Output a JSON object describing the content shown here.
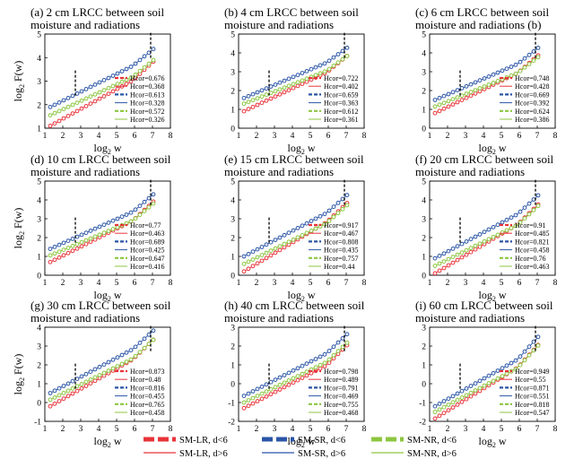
{
  "colors": {
    "SM-LR": "#e8333a",
    "SM-SR": "#2a55a6",
    "SM-NR": "#8cc63f",
    "cutoff": "#000000"
  },
  "bottom_legend": [
    {
      "label": "SM-LR, d<6",
      "series": "SM-LR",
      "style": "dashed-thick"
    },
    {
      "label": "SM-LR, d>6",
      "series": "SM-LR",
      "style": "solid-thin"
    },
    {
      "label": "SM-SR, d<6",
      "series": "SM-SR",
      "style": "dashed-thick"
    },
    {
      "label": "SM-SR, d>6",
      "series": "SM-SR",
      "style": "solid-thin"
    },
    {
      "label": "SM-NR, d<6",
      "series": "SM-NR",
      "style": "dashed-thick"
    },
    {
      "label": "SM-NR, d>6",
      "series": "SM-NR",
      "style": "solid-thin"
    }
  ],
  "chart_data": [
    {
      "type": "scatter",
      "title": [
        "(a) 2 cm LRCC between soil",
        "moisture and radiations"
      ],
      "xlabel": "log2 w",
      "ylabel": "log2 F(w)",
      "xlim": [
        1,
        8
      ],
      "ylim": [
        1,
        5
      ],
      "xticks": [
        1,
        2,
        3,
        4,
        5,
        6,
        7,
        8
      ],
      "yticks": [
        1,
        2,
        3,
        4,
        5
      ],
      "cutoffs": [
        2.7,
        6.9
      ],
      "hcor": [
        "Hcor=0.676",
        "Hcor=0.368",
        "Hcor=0.613",
        "Hcor=0.328",
        "Hcor=0.572",
        "Hcor=0.326"
      ],
      "series": [
        {
          "key": "SM-LR",
          "start": 1.1,
          "h1": 0.676,
          "h2": 0.368
        },
        {
          "key": "SM-SR",
          "start": 1.9,
          "h1": 0.613,
          "h2": 0.328
        },
        {
          "key": "SM-NR",
          "start": 1.55,
          "h1": 0.572,
          "h2": 0.326
        }
      ]
    },
    {
      "type": "scatter",
      "title": [
        "(b) 4 cm LRCC between soil",
        "moisture and radiations"
      ],
      "xlabel": "log2 w",
      "ylabel": "",
      "xlim": [
        1,
        8
      ],
      "ylim": [
        0,
        5
      ],
      "xticks": [
        1,
        2,
        3,
        4,
        5,
        6,
        7,
        8
      ],
      "yticks": [
        0,
        1,
        2,
        3,
        4,
        5
      ],
      "cutoffs": [
        2.7,
        6.9
      ],
      "hcor": [
        "Hcor=0.722",
        "Hcor=0.402",
        "Hcor=0.659",
        "Hcor=0.363",
        "Hcor=0.612",
        "Hcor=0.361"
      ],
      "series": [
        {
          "key": "SM-LR",
          "start": 0.9,
          "h1": 0.722,
          "h2": 0.402
        },
        {
          "key": "SM-SR",
          "start": 1.6,
          "h1": 0.659,
          "h2": 0.363
        },
        {
          "key": "SM-NR",
          "start": 1.3,
          "h1": 0.612,
          "h2": 0.361
        }
      ]
    },
    {
      "type": "scatter",
      "title": [
        "(c) 6 cm LRCC between soil",
        "moisture and radiations (b)"
      ],
      "xlabel": "log2 w",
      "ylabel": "",
      "xlim": [
        1,
        8
      ],
      "ylim": [
        0,
        5
      ],
      "xticks": [
        1,
        2,
        3,
        4,
        5,
        6,
        7,
        8
      ],
      "yticks": [
        0,
        1,
        2,
        3,
        4,
        5
      ],
      "cutoffs": [
        2.7,
        6.9
      ],
      "hcor": [
        "Hcor=0.748",
        "Hcor=0.428",
        "Hcor=0.669",
        "Hcor=0.392",
        "Hcor=0.624",
        "Hcor=0.386"
      ],
      "series": [
        {
          "key": "SM-LR",
          "start": 0.8,
          "h1": 0.748,
          "h2": 0.428
        },
        {
          "key": "SM-SR",
          "start": 1.5,
          "h1": 0.669,
          "h2": 0.392
        },
        {
          "key": "SM-NR",
          "start": 1.15,
          "h1": 0.624,
          "h2": 0.386
        }
      ]
    },
    {
      "type": "scatter",
      "title": [
        "(d) 10 cm LRCC between soil",
        "moisture and radiations"
      ],
      "xlabel": "log2 w",
      "ylabel": "log2 F(w)",
      "xlim": [
        1,
        8
      ],
      "ylim": [
        0,
        5
      ],
      "xticks": [
        1,
        2,
        3,
        4,
        5,
        6,
        7,
        8
      ],
      "yticks": [
        0,
        1,
        2,
        3,
        4,
        5
      ],
      "cutoffs": [
        2.7,
        6.9
      ],
      "hcor": [
        "Hcor=0.77",
        "Hcor=0.463",
        "Hcor=0.689",
        "Hcor=0.425",
        "Hcor=0.647",
        "Hcor=0.416"
      ],
      "series": [
        {
          "key": "SM-LR",
          "start": 0.7,
          "h1": 0.77,
          "h2": 0.463
        },
        {
          "key": "SM-SR",
          "start": 1.4,
          "h1": 0.689,
          "h2": 0.425
        },
        {
          "key": "SM-NR",
          "start": 1.05,
          "h1": 0.647,
          "h2": 0.416
        }
      ]
    },
    {
      "type": "scatter",
      "title": [
        "(e) 15 cm LRCC between soil",
        "moisture and radiations"
      ],
      "xlabel": "log2 w",
      "ylabel": "",
      "xlim": [
        1,
        8
      ],
      "ylim": [
        0,
        5
      ],
      "xticks": [
        1,
        2,
        3,
        4,
        5,
        6,
        7,
        8
      ],
      "yticks": [
        0,
        1,
        2,
        3,
        4,
        5
      ],
      "cutoffs": [
        2.7,
        6.9
      ],
      "hcor": [
        "Hcor=0.917",
        "Hcor=0.467",
        "Hcor=0.808",
        "Hcor=0.435",
        "Hcor=0.757",
        "Hcor=0.44"
      ],
      "series": [
        {
          "key": "SM-LR",
          "start": 0.2,
          "h1": 0.917,
          "h2": 0.467
        },
        {
          "key": "SM-SR",
          "start": 1.0,
          "h1": 0.808,
          "h2": 0.435
        },
        {
          "key": "SM-NR",
          "start": 0.6,
          "h1": 0.757,
          "h2": 0.44
        }
      ]
    },
    {
      "type": "scatter",
      "title": [
        "(f) 20 cm LRCC between soil",
        "moisture and radiations"
      ],
      "xlabel": "log2 w",
      "ylabel": "",
      "xlim": [
        1,
        8
      ],
      "ylim": [
        0,
        5
      ],
      "xticks": [
        1,
        2,
        3,
        4,
        5,
        6,
        7,
        8
      ],
      "yticks": [
        0,
        1,
        2,
        3,
        4,
        5
      ],
      "cutoffs": [
        2.7,
        6.9
      ],
      "hcor": [
        "Hcor=0.91",
        "Hcor=0.485",
        "Hcor=0.821",
        "Hcor=0.458",
        "Hcor=0.76",
        "Hcor=0.463"
      ],
      "series": [
        {
          "key": "SM-LR",
          "start": 0.1,
          "h1": 0.91,
          "h2": 0.485
        },
        {
          "key": "SM-SR",
          "start": 0.9,
          "h1": 0.821,
          "h2": 0.458
        },
        {
          "key": "SM-NR",
          "start": 0.5,
          "h1": 0.76,
          "h2": 0.463
        }
      ]
    },
    {
      "type": "scatter",
      "title": [
        "(g) 30 cm LRCC between soil",
        "moisture and radiations"
      ],
      "xlabel": "log2 w",
      "ylabel": "log2 F(w)",
      "xlim": [
        1,
        8
      ],
      "ylim": [
        -1,
        4
      ],
      "xticks": [
        1,
        2,
        3,
        4,
        5,
        6,
        7,
        8
      ],
      "yticks": [
        -1,
        0,
        1,
        2,
        3,
        4
      ],
      "cutoffs": [
        2.7,
        6.9
      ],
      "hcor": [
        "Hcor=0.873",
        "Hcor=0.48",
        "Hcor=0.816",
        "Hcor=0.455",
        "Hcor=0.765",
        "Hcor=0.458"
      ],
      "series": [
        {
          "key": "SM-LR",
          "start": -0.2,
          "h1": 0.873,
          "h2": 0.48
        },
        {
          "key": "SM-SR",
          "start": 0.5,
          "h1": 0.816,
          "h2": 0.455
        },
        {
          "key": "SM-NR",
          "start": 0.15,
          "h1": 0.765,
          "h2": 0.458
        }
      ]
    },
    {
      "type": "scatter",
      "title": [
        "(h) 40 cm LRCC between soil",
        "moisture and radiations"
      ],
      "xlabel": "log2 w",
      "ylabel": "",
      "xlim": [
        1,
        8
      ],
      "ylim": [
        -2,
        3
      ],
      "xticks": [
        1,
        2,
        3,
        4,
        5,
        6,
        7,
        8
      ],
      "yticks": [
        -2,
        -1,
        0,
        1,
        2,
        3
      ],
      "cutoffs": [
        2.7,
        6.9
      ],
      "hcor": [
        "Hcor=0.798",
        "Hcor=0.489",
        "Hcor=0.791",
        "Hcor=0.469",
        "Hcor=0.755",
        "Hcor=0.468"
      ],
      "series": [
        {
          "key": "SM-LR",
          "start": -1.3,
          "h1": 0.798,
          "h2": 0.489
        },
        {
          "key": "SM-SR",
          "start": -0.65,
          "h1": 0.791,
          "h2": 0.469
        },
        {
          "key": "SM-NR",
          "start": -1.0,
          "h1": 0.755,
          "h2": 0.468
        }
      ]
    },
    {
      "type": "scatter",
      "title": [
        "(i) 60 cm LRCC between soil",
        "moisture and radiations"
      ],
      "xlabel": "log2 w",
      "ylabel": "",
      "xlim": [
        1,
        8
      ],
      "ylim": [
        -2,
        3
      ],
      "xticks": [
        1,
        2,
        3,
        4,
        5,
        6,
        7,
        8
      ],
      "yticks": [
        -2,
        -1,
        0,
        1,
        2,
        3
      ],
      "cutoffs": [
        2.7,
        6.9
      ],
      "hcor": [
        "Hcor=0.949",
        "Hcor=0.55",
        "Hcor=0.871",
        "Hcor=0.551",
        "Hcor=0.818",
        "Hcor=0.547"
      ],
      "series": [
        {
          "key": "SM-LR",
          "start": -1.85,
          "h1": 0.949,
          "h2": 0.55
        },
        {
          "key": "SM-SR",
          "start": -1.2,
          "h1": 0.871,
          "h2": 0.551
        },
        {
          "key": "SM-NR",
          "start": -1.5,
          "h1": 0.818,
          "h2": 0.547
        }
      ]
    }
  ]
}
